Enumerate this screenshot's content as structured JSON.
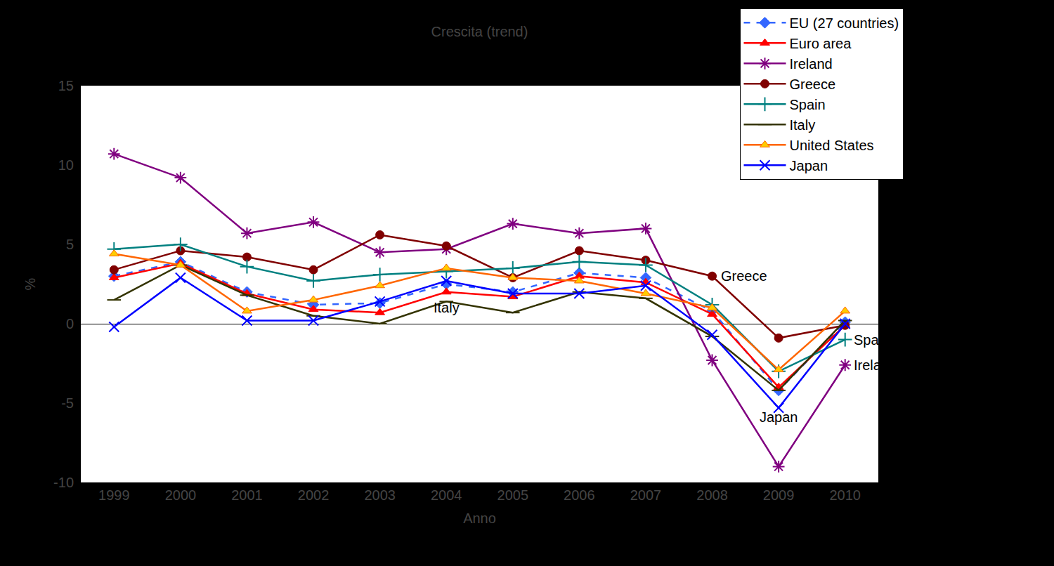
{
  "chart_data": {
    "type": "line",
    "title": "Crescita (trend)",
    "x_label": "Anno",
    "y_label": "%",
    "categories": [
      "1999",
      "2000",
      "2001",
      "2002",
      "2003",
      "2004",
      "2005",
      "2006",
      "2007",
      "2008",
      "2009",
      "2010"
    ],
    "ylim": [
      -10,
      15
    ],
    "yticks": [
      -10,
      -5,
      0,
      5,
      10,
      15
    ],
    "grid": false,
    "legend": "top right",
    "series": [
      {
        "name": "EU (27 countries)",
        "color": "#3366ff",
        "marker": "diamond",
        "line_style": "dashed",
        "values": [
          3.0,
          3.9,
          2.0,
          1.2,
          1.3,
          2.5,
          2.0,
          3.2,
          2.9,
          0.8,
          -4.2,
          0.1
        ]
      },
      {
        "name": "Euro area",
        "color": "#ff0000",
        "marker": "triangle",
        "line_style": "solid",
        "values": [
          2.9,
          3.8,
          1.9,
          0.9,
          0.7,
          2.0,
          1.7,
          3.0,
          2.6,
          0.6,
          -4.0,
          -0.1
        ]
      },
      {
        "name": "Ireland",
        "color": "#800080",
        "marker": "asterisk",
        "line_style": "solid",
        "values": [
          10.7,
          9.2,
          5.7,
          6.4,
          4.5,
          4.7,
          6.3,
          5.7,
          6.0,
          -2.3,
          -9.0,
          -2.6
        ]
      },
      {
        "name": "Greece",
        "color": "#800000",
        "marker": "circle",
        "line_style": "solid",
        "values": [
          3.4,
          4.6,
          4.2,
          3.4,
          5.6,
          4.9,
          2.9,
          4.6,
          4.0,
          3.0,
          -0.9,
          -0.1
        ]
      },
      {
        "name": "Spain",
        "color": "#008080",
        "marker": "cross",
        "line_style": "solid",
        "values": [
          4.7,
          5.0,
          3.6,
          2.7,
          3.1,
          3.3,
          3.5,
          3.9,
          3.7,
          1.2,
          -3.0,
          -1.0
        ]
      },
      {
        "name": "Italy",
        "color": "#333300",
        "marker": "dash",
        "line_style": "solid",
        "values": [
          1.5,
          3.7,
          1.8,
          0.5,
          0.0,
          1.4,
          0.7,
          2.0,
          1.6,
          -0.8,
          -4.2,
          0.2
        ]
      },
      {
        "name": "United States",
        "color": "#ff6600",
        "marker": "triangle",
        "line_style": "solid",
        "values": [
          4.4,
          3.7,
          0.8,
          1.5,
          2.4,
          3.5,
          2.9,
          2.7,
          1.9,
          1.0,
          -2.9,
          0.8
        ]
      },
      {
        "name": "Japan",
        "color": "#0000ff",
        "marker": "x",
        "line_style": "solid",
        "values": [
          -0.2,
          2.9,
          0.2,
          0.2,
          1.4,
          2.7,
          1.9,
          1.9,
          2.4,
          -0.7,
          -5.3,
          0.0
        ]
      }
    ],
    "annotations": [
      {
        "text": "Greece",
        "x": "2008",
        "y": 3.0
      },
      {
        "text": "Italy",
        "x": "2004",
        "y": 1.0
      },
      {
        "text": "Spain",
        "x": "2010",
        "y": -1.0
      },
      {
        "text": "Ireland",
        "x": "2010",
        "y": -2.6
      },
      {
        "text": "Japan",
        "x": "2009",
        "y": -5.9
      }
    ]
  }
}
